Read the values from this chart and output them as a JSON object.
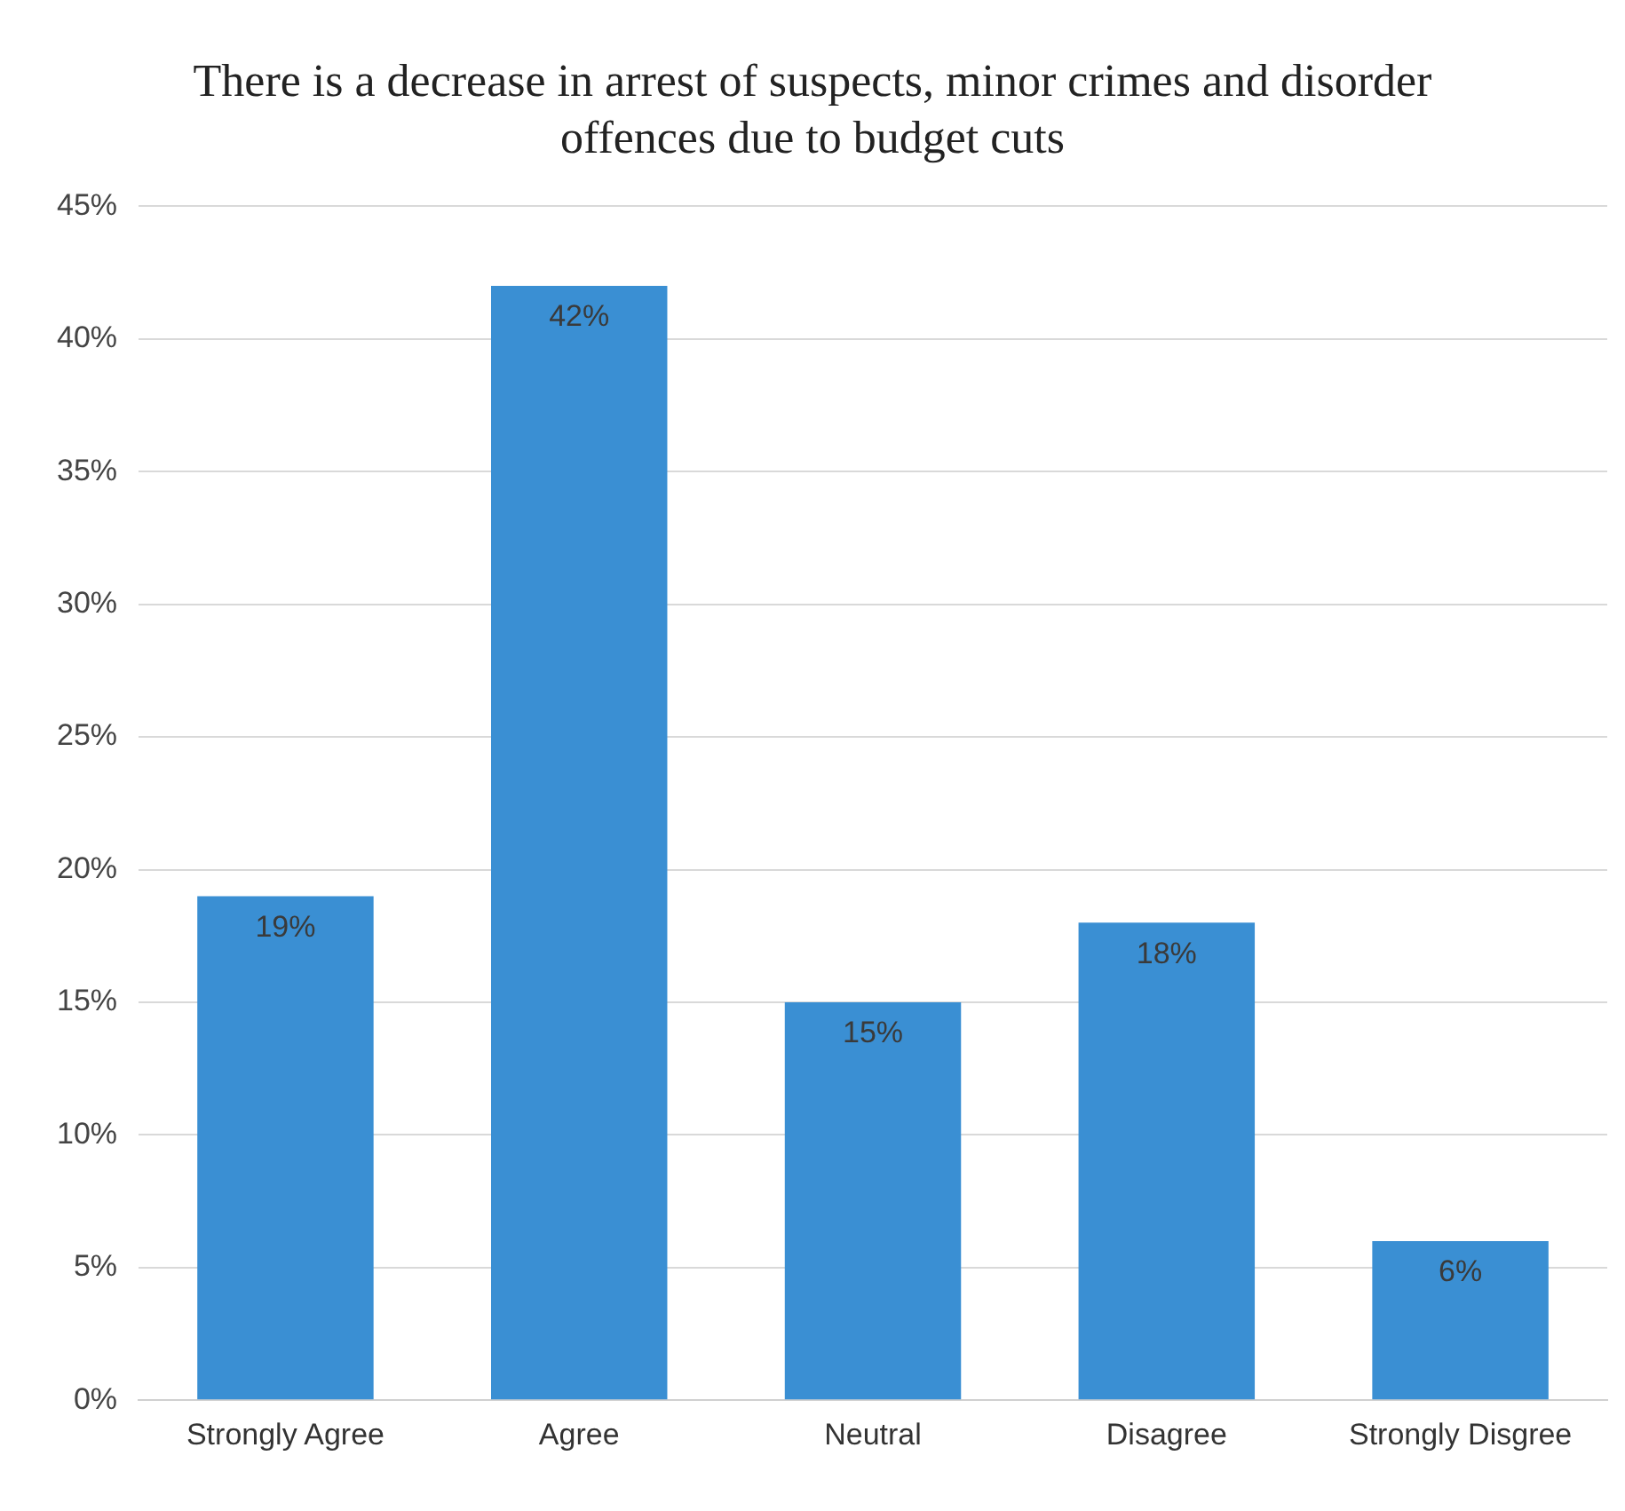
{
  "chart_data": {
    "type": "bar",
    "title": "There is a decrease in arrest of suspects, minor crimes and disorder offences due to budget cuts",
    "categories": [
      "Strongly Agree",
      "Agree",
      "Neutral",
      "Disagree",
      "Strongly Disgree"
    ],
    "values": [
      19,
      42,
      15,
      18,
      6
    ],
    "value_labels": [
      "19%",
      "42%",
      "15%",
      "18%",
      "6%"
    ],
    "color": "#3a8fd3",
    "ylim": [
      0,
      45
    ],
    "yticks": [
      {
        "value": 0,
        "label": "0%"
      },
      {
        "value": 5,
        "label": "5%"
      },
      {
        "value": 10,
        "label": "10%"
      },
      {
        "value": 15,
        "label": "15%"
      },
      {
        "value": 20,
        "label": "20%"
      },
      {
        "value": 25,
        "label": "25%"
      },
      {
        "value": 30,
        "label": "30%"
      },
      {
        "value": 35,
        "label": "35%"
      },
      {
        "value": 40,
        "label": "40%"
      },
      {
        "value": 45,
        "label": "45%"
      }
    ],
    "grid": "y"
  }
}
